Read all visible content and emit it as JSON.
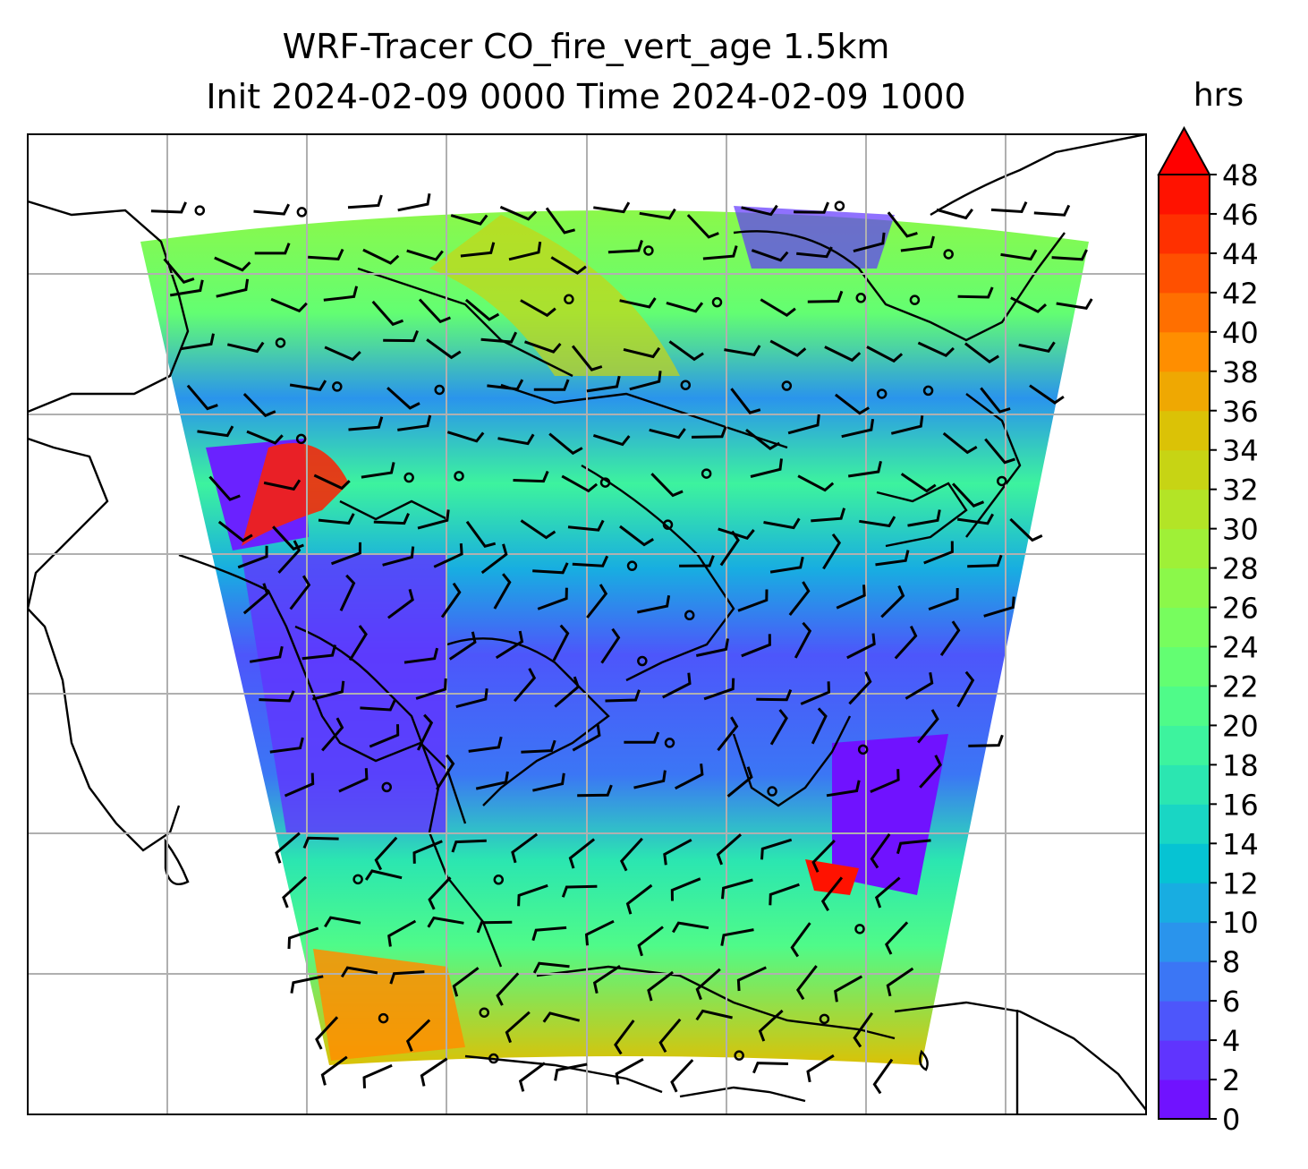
{
  "chart_data": {
    "type": "heatmap",
    "title_line1": "WRF-Tracer CO_fire_vert_age 1.5km",
    "title_line2": "Init 2024-02-09 0000 Time 2024-02-09 1000",
    "colorbar": {
      "label": "hrs",
      "min": 0,
      "max": 48,
      "step": 2,
      "extend": "max",
      "tick_labels": [
        "0",
        "2",
        "4",
        "6",
        "8",
        "10",
        "12",
        "14",
        "16",
        "18",
        "20",
        "22",
        "24",
        "26",
        "28",
        "30",
        "32",
        "34",
        "36",
        "38",
        "40",
        "42",
        "44",
        "46",
        "48"
      ],
      "colors": [
        "#7012ff",
        "#6034fe",
        "#4d56fb",
        "#3b76f5",
        "#2a94ec",
        "#18ade1",
        "#06c3d3",
        "#19d6c4",
        "#2be6b1",
        "#3df39e",
        "#4ffb89",
        "#63fe72",
        "#77fd5e",
        "#8bf84a",
        "#9ff037",
        "#b3e426",
        "#c7d414",
        "#dbc206",
        "#efa802",
        "#ff8e00",
        "#ff6f00",
        "#ff5000",
        "#ff3000",
        "#ff1200"
      ],
      "extend_color": "#ff0000"
    },
    "grid": true,
    "wind_barbs": true,
    "coastlines": true
  }
}
